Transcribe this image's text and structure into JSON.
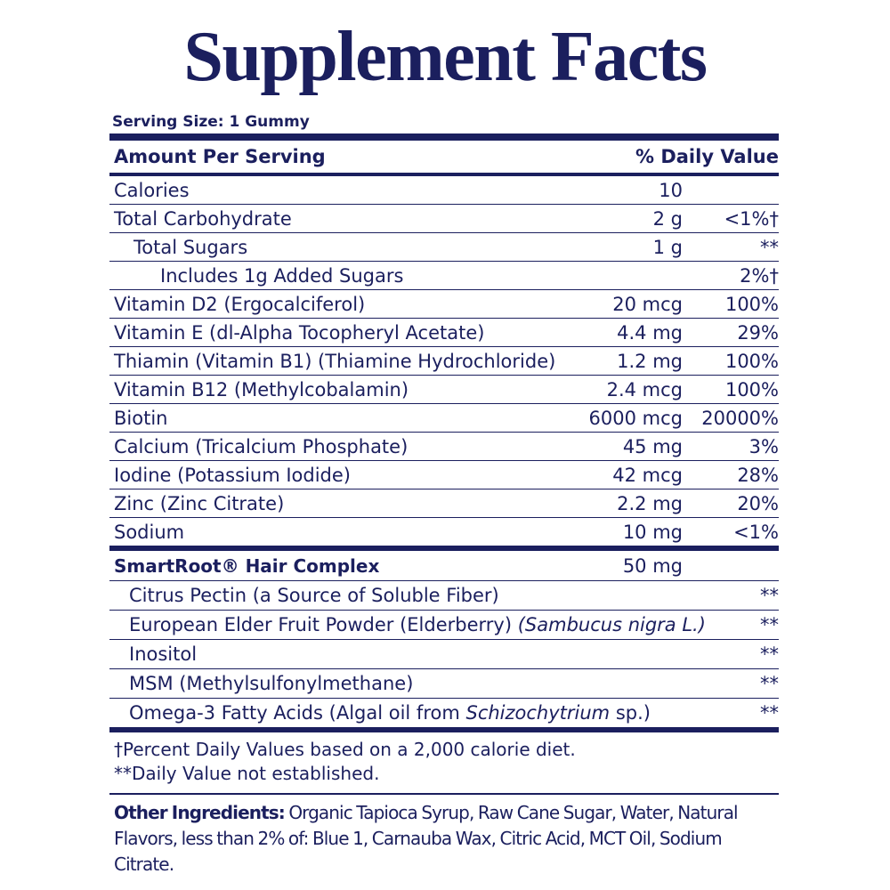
{
  "title": "Supplement Facts",
  "serving_size": "Serving Size: 1 Gummy",
  "header": {
    "amount": "Amount Per Serving",
    "dv": "% Daily Value"
  },
  "rows": [
    {
      "name": "Calories",
      "amount": "10",
      "dv": null,
      "level": 0
    },
    {
      "name": "Total Carbohydrate",
      "amount": "2 g",
      "dv": "<1%†",
      "level": 0
    },
    {
      "name": "Total Sugars",
      "amount": "1 g",
      "dv": "**",
      "level": 1
    },
    {
      "name": "Includes 1g Added Sugars",
      "amount": null,
      "dv": "2%†",
      "level": 2
    },
    {
      "name": "Vitamin D2 (Ergocalciferol)",
      "amount": "20 mcg",
      "dv": "100%",
      "level": 0
    },
    {
      "name": "Vitamin E (dl-Alpha Tocopheryl Acetate)",
      "amount": "4.4 mg",
      "dv": "29%",
      "level": 0
    },
    {
      "name": "Thiamin (Vitamin B1) (Thiamine Hydrochloride)",
      "amount": "1.2 mg",
      "dv": "100%",
      "level": 0
    },
    {
      "name": "Vitamin B12 (Methylcobalamin)",
      "amount": "2.4 mcg",
      "dv": "100%",
      "level": 0
    },
    {
      "name": "Biotin",
      "amount": "6000 mcg",
      "dv": "20000%",
      "level": 0
    },
    {
      "name": "Calcium (Tricalcium Phosphate)",
      "amount": "45 mg",
      "dv": "3%",
      "level": 0
    },
    {
      "name": "Iodine (Potassium Iodide)",
      "amount": "42 mcg",
      "dv": "28%",
      "level": 0
    },
    {
      "name": "Zinc (Zinc Citrate)",
      "amount": "2.2 mg",
      "dv": "20%",
      "level": 0
    },
    {
      "name": "Sodium",
      "amount": "10 mg",
      "dv": "<1%",
      "level": 0
    }
  ],
  "complex": {
    "name": "SmartRoot® Hair Complex",
    "amount": "50 mg",
    "items": [
      {
        "segments": [
          {
            "text": "Citrus Pectin (a Source of Soluble Fiber)",
            "italic": false
          }
        ],
        "dv": "**"
      },
      {
        "segments": [
          {
            "text": "European Elder Fruit Powder (Elderberry) ",
            "italic": false
          },
          {
            "text": "(Sambucus nigra L.)",
            "italic": true
          }
        ],
        "dv": "**"
      },
      {
        "segments": [
          {
            "text": "Inositol",
            "italic": false
          }
        ],
        "dv": "**"
      },
      {
        "segments": [
          {
            "text": "MSM (Methylsulfonylmethane)",
            "italic": false
          }
        ],
        "dv": "**"
      },
      {
        "segments": [
          {
            "text": "Omega-3 Fatty Acids (Algal oil from ",
            "italic": false
          },
          {
            "text": "Schizochytrium",
            "italic": true
          },
          {
            "text": " sp.)",
            "italic": false
          }
        ],
        "dv": "**"
      }
    ]
  },
  "footnotes": [
    "†Percent Daily Values based on a 2,000 calorie diet.",
    "**Daily Value not established."
  ],
  "other_ingredients": {
    "label": "Other Ingredients:",
    "text": " Organic Tapioca Syrup, Raw Cane Sugar, Water, Natural Flavors, less than 2% of: Blue 1, Carnauba Wax, Citric Acid, MCT Oil, Sodium Citrate."
  }
}
